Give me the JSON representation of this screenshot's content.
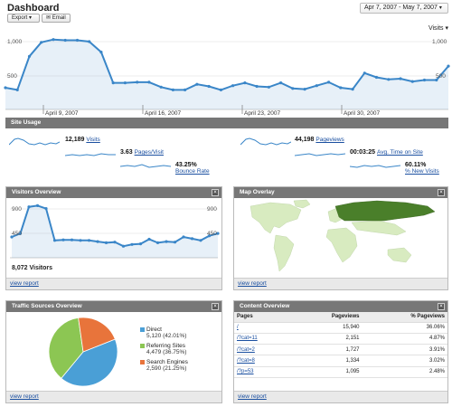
{
  "header": {
    "title": "Dashboard",
    "export_label": "Export ▾",
    "email_label": "✉ Email",
    "date_range": "Apr 7, 2007 - May 7, 2007",
    "metric_select": "Visits ▾"
  },
  "main_chart": {
    "y_labels": [
      "1,000",
      "500",
      "1,000",
      "500"
    ],
    "week_labels": [
      "April 9, 2007",
      "April 16, 2007",
      "April 23, 2007",
      "April 30, 2007"
    ],
    "color": "#3a86c8"
  },
  "chart_data": [
    {
      "type": "area",
      "series": [
        {
          "values": [
            310,
            280,
            760,
            960,
            1000,
            990,
            990,
            970,
            820,
            380,
            380,
            390,
            390,
            320,
            280,
            280,
            360,
            330,
            280,
            340,
            380,
            330,
            320,
            380,
            300,
            290,
            340,
            390,
            310,
            290,
            520,
            460,
            430,
            440,
            400,
            420,
            420,
            620
          ]
        }
      ],
      "ylim": [
        0,
        1100
      ],
      "y_ticks": [
        500,
        1000
      ],
      "x_tick_labels": [
        "April 9, 2007",
        "April 16, 2007",
        "April 23, 2007",
        "April 30, 2007"
      ]
    },
    {
      "type": "area",
      "series": [
        {
          "values": [
            360,
            420,
            880,
            900,
            850,
            300,
            310,
            310,
            300,
            300,
            280,
            260,
            270,
            200,
            230,
            240,
            320,
            260,
            280,
            270,
            360,
            330,
            300,
            380,
            420
          ]
        }
      ],
      "ylim": [
        0,
        1000
      ],
      "y_ticks": [
        450,
        900
      ]
    },
    {
      "type": "pie",
      "categories": [
        "Direct",
        "Referring Sites",
        "Search Engines"
      ],
      "values": [
        42.01,
        36.75,
        21.25
      ],
      "colors": [
        "#4a9fd6",
        "#8cc653",
        "#e8743b"
      ]
    }
  ],
  "site_usage": {
    "title": "Site Usage",
    "visits_value": "12,189",
    "visits_label": "Visits",
    "ppv_value": "3.63",
    "ppv_label": "Pages/Visit",
    "bounce_value": "43.25%",
    "bounce_label": "Bounce Rate",
    "pageviews_value": "44,198",
    "pageviews_label": "Pageviews",
    "time_value": "00:03:25",
    "time_label": "Avg. Time on Site",
    "newvisits_value": "60.11%",
    "newvisits_label": "% New Visits"
  },
  "visitors": {
    "title": "Visitors Overview",
    "y_top": "900",
    "y_mid": "450",
    "y_top_right": "900",
    "y_mid_right": "450",
    "total": "8,072 Visitors",
    "footer": "view report"
  },
  "map": {
    "title": "Map Overlay",
    "footer": "view report",
    "land_color": "#d8ebc0",
    "highlight_color": "#4a7f2a"
  },
  "traffic": {
    "title": "Traffic Sources Overview",
    "footer": "view report",
    "items": [
      {
        "name": "Direct",
        "value": "5,120 (42.01%)",
        "color": "#4a9fd6"
      },
      {
        "name": "Referring Sites",
        "value": "4,479 (36.75%)",
        "color": "#8cc653"
      },
      {
        "name": "Search Engines",
        "value": "2,590 (21.25%)",
        "color": "#e8743b"
      }
    ]
  },
  "content": {
    "title": "Content Overview",
    "col_pages": "Pages",
    "col_pageviews": "Pageviews",
    "col_pct": "% Pageviews",
    "rows": [
      {
        "page": "/",
        "views": "15,940",
        "pct": "36.06%"
      },
      {
        "page": "/?cat=11",
        "views": "2,151",
        "pct": "4.87%"
      },
      {
        "page": "/?cat=2",
        "views": "1,727",
        "pct": "3.91%"
      },
      {
        "page": "/?cat=8",
        "views": "1,334",
        "pct": "3.02%"
      },
      {
        "page": "/?p=53",
        "views": "1,095",
        "pct": "2.48%"
      }
    ],
    "footer": "view report"
  }
}
